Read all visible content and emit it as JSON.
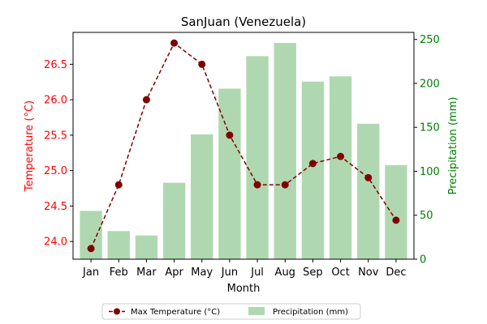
{
  "chart_data": {
    "type": "bar",
    "title": "SanJuan (Venezuela)",
    "xlabel": "Month",
    "categories": [
      "Jan",
      "Feb",
      "Mar",
      "Apr",
      "May",
      "Jun",
      "Jul",
      "Aug",
      "Sep",
      "Oct",
      "Nov",
      "Dec"
    ],
    "left_axis": {
      "label": "Temperature (°C)",
      "color": "#ff0000",
      "ylim": [
        23.75,
        26.95
      ],
      "ticks": [
        "24.0",
        "24.5",
        "25.0",
        "25.5",
        "26.0",
        "26.5"
      ]
    },
    "right_axis": {
      "label": "Precipitation (mm)",
      "color": "#008000",
      "ylim": [
        0,
        258
      ],
      "ticks": [
        "0",
        "50",
        "100",
        "150",
        "200",
        "250"
      ]
    },
    "series": [
      {
        "name": "Max Temperature (°C)",
        "type": "line",
        "axis": "left",
        "style": "dashed",
        "marker": "circle",
        "color": "#800000",
        "values": [
          23.9,
          24.8,
          26.0,
          26.8,
          26.5,
          25.5,
          24.8,
          24.8,
          25.1,
          25.2,
          24.9,
          24.3
        ]
      },
      {
        "name": "Precipitation (mm)",
        "type": "bar",
        "axis": "right",
        "color": "#b0d8b0",
        "values": [
          55,
          32,
          27,
          87,
          142,
          194,
          231,
          246,
          202,
          208,
          154,
          107
        ]
      }
    ],
    "legend": {
      "placement": "bottom-center"
    }
  }
}
